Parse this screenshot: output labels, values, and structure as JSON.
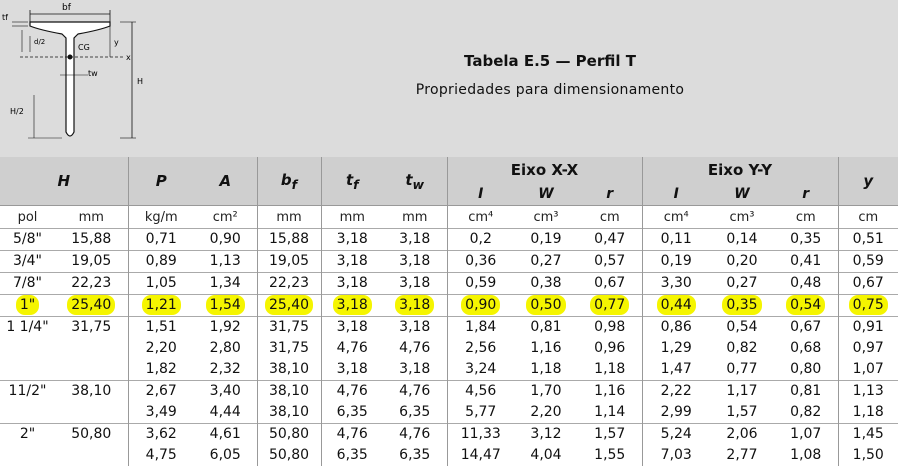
{
  "diagram": {
    "labels": {
      "bf": "bf",
      "tf": "tf",
      "y": "y",
      "x": "x",
      "cg": "CG",
      "tw": "tw",
      "h": "H",
      "h2": "H/2",
      "dim": "d/2"
    }
  },
  "title": "Tabela E.5 — Perfil T",
  "subtitle": "Propriedades para dimensionamento",
  "headers": {
    "H": "H",
    "P": "P",
    "A": "A",
    "bf": "b",
    "bf_sub": "f",
    "tf": "t",
    "tf_sub": "f",
    "tw": "t",
    "tw_sub": "w",
    "axis_x": "Eixo X-X",
    "axis_y": "Eixo Y-Y",
    "y": "y",
    "I": "I",
    "W": "W",
    "r": "r"
  },
  "units": [
    "pol",
    "mm",
    "kg/m",
    "cm²",
    "mm",
    "mm",
    "mm",
    "cm⁴",
    "cm³",
    "cm",
    "cm⁴",
    "cm³",
    "cm",
    "cm"
  ],
  "rows": [
    {
      "pol": "5/8\"",
      "mm": "15,88",
      "P": "0,71",
      "A": "0,90",
      "bf": "15,88",
      "tf": "3,18",
      "tw": "3,18",
      "Ix": "0,2",
      "Wx": "0,19",
      "rx": "0,47",
      "Iy": "0,11",
      "Wy": "0,14",
      "ry": "0,35",
      "y": "0,51",
      "highlight": false
    },
    {
      "pol": "3/4\"",
      "mm": "19,05",
      "P": "0,89",
      "A": "1,13",
      "bf": "19,05",
      "tf": "3,18",
      "tw": "3,18",
      "Ix": "0,36",
      "Wx": "0,27",
      "rx": "0,57",
      "Iy": "0,19",
      "Wy": "0,20",
      "ry": "0,41",
      "y": "0,59",
      "highlight": false
    },
    {
      "pol": "7/8\"",
      "mm": "22,23",
      "P": "1,05",
      "A": "1,34",
      "bf": "22,23",
      "tf": "3,18",
      "tw": "3,18",
      "Ix": "0,59",
      "Wx": "0,38",
      "rx": "0,67",
      "Iy": "3,30",
      "Wy": "0,27",
      "ry": "0,48",
      "y": "0,67",
      "highlight": false
    },
    {
      "pol": "1\"",
      "mm": "25,40",
      "P": "1,21",
      "A": "1,54",
      "bf": "25,40",
      "tf": "3,18",
      "tw": "3,18",
      "Ix": "0,90",
      "Wx": "0,50",
      "rx": "0,77",
      "Iy": "0,44",
      "Wy": "0,35",
      "ry": "0,54",
      "y": "0,75",
      "highlight": true
    },
    {
      "pol": "1 1/4\"",
      "mm": "31,75",
      "P": "1,51\n2,20\n1,82",
      "A": "1,92\n2,80\n2,32",
      "bf": "31,75\n31,75\n38,10",
      "tf": "3,18\n4,76\n3,18",
      "tw": "3,18\n4,76\n3,18",
      "Ix": "1,84\n2,56\n3,24",
      "Wx": "0,81\n1,16\n1,18",
      "rx": "0,98\n0,96\n1,18",
      "Iy": "0,86\n1,29\n1,47",
      "Wy": "0,54\n0,82\n0,77",
      "ry": "0,67\n0,68\n0,80",
      "y": "0,91\n0,97\n1,07",
      "highlight": false
    },
    {
      "pol": "11/2\"",
      "mm": "38,10",
      "P": "2,67\n3,49",
      "A": "3,40\n4,44",
      "bf": "38,10\n38,10",
      "tf": "4,76\n6,35",
      "tw": "4,76\n6,35",
      "Ix": "4,56\n5,77",
      "Wx": "1,70\n2,20",
      "rx": "1,16\n1,14",
      "Iy": "2,22\n2,99",
      "Wy": "1,17\n1,57",
      "ry": "0,81\n0,82",
      "y": "1,13\n1,18",
      "highlight": false
    },
    {
      "pol": "2\"",
      "mm": "50,80",
      "P": "3,62\n4,75",
      "A": "4,61\n6,05",
      "bf": "50,80\n50,80",
      "tf": "4,76\n6,35",
      "tw": "4,76\n6,35",
      "Ix": "11,33\n14,47",
      "Wx": "3,12\n4,04",
      "rx": "1,57\n1,55",
      "Iy": "5,24\n7,03",
      "Wy": "2,06\n2,77",
      "ry": "1,07\n1,08",
      "y": "1,45\n1,50",
      "highlight": false
    }
  ]
}
